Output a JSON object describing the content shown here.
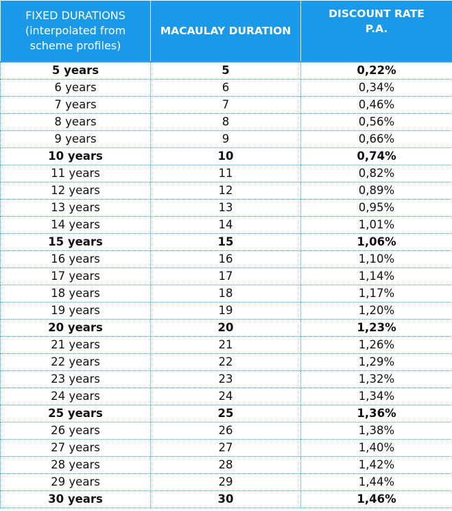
{
  "headers": {
    "col1_line1": "FIXED DURATIONS",
    "col1_line2": "(interpolated from",
    "col1_line3": "scheme profiles)",
    "col2": "MACAULAY DURATION",
    "col3_line1": "DISCOUNT RATE",
    "col3_line2": "P.A."
  },
  "colors": {
    "header_bg": "#1a99e8",
    "header_text": "#ffffff",
    "grid_line": "#2aa3e8"
  },
  "rows": [
    {
      "fixed": "5 years",
      "macaulay": "5",
      "rate": "0,22%",
      "bold": true
    },
    {
      "fixed": "6 years",
      "macaulay": "6",
      "rate": "0,34%",
      "bold": false
    },
    {
      "fixed": "7 years",
      "macaulay": "7",
      "rate": "0,46%",
      "bold": false
    },
    {
      "fixed": "8 years",
      "macaulay": "8",
      "rate": "0,56%",
      "bold": false
    },
    {
      "fixed": "9 years",
      "macaulay": "9",
      "rate": "0,66%",
      "bold": false
    },
    {
      "fixed": "10 years",
      "macaulay": "10",
      "rate": "0,74%",
      "bold": true
    },
    {
      "fixed": "11 years",
      "macaulay": "11",
      "rate": "0,82%",
      "bold": false
    },
    {
      "fixed": "12 years",
      "macaulay": "12",
      "rate": "0,89%",
      "bold": false
    },
    {
      "fixed": "13 years",
      "macaulay": "13",
      "rate": "0,95%",
      "bold": false
    },
    {
      "fixed": "14 years",
      "macaulay": "14",
      "rate": "1,01%",
      "bold": false
    },
    {
      "fixed": "15 years",
      "macaulay": "15",
      "rate": "1,06%",
      "bold": true
    },
    {
      "fixed": "16 years",
      "macaulay": "16",
      "rate": "1,10%",
      "bold": false
    },
    {
      "fixed": "17 years",
      "macaulay": "17",
      "rate": "1,14%",
      "bold": false
    },
    {
      "fixed": "18 years",
      "macaulay": "18",
      "rate": "1,17%",
      "bold": false
    },
    {
      "fixed": "19 years",
      "macaulay": "19",
      "rate": "1,20%",
      "bold": false
    },
    {
      "fixed": "20 years",
      "macaulay": "20",
      "rate": "1,23%",
      "bold": true
    },
    {
      "fixed": "21 years",
      "macaulay": "21",
      "rate": "1,26%",
      "bold": false
    },
    {
      "fixed": "22 years",
      "macaulay": "22",
      "rate": "1,29%",
      "bold": false
    },
    {
      "fixed": "23 years",
      "macaulay": "23",
      "rate": "1,32%",
      "bold": false
    },
    {
      "fixed": "24 years",
      "macaulay": "24",
      "rate": "1,34%",
      "bold": false
    },
    {
      "fixed": "25 years",
      "macaulay": "25",
      "rate": "1,36%",
      "bold": true
    },
    {
      "fixed": "26 years",
      "macaulay": "26",
      "rate": "1,38%",
      "bold": false
    },
    {
      "fixed": "27 years",
      "macaulay": "27",
      "rate": "1,40%",
      "bold": false
    },
    {
      "fixed": "28 years",
      "macaulay": "28",
      "rate": "1,42%",
      "bold": false
    },
    {
      "fixed": "29 years",
      "macaulay": "29",
      "rate": "1,44%",
      "bold": false
    },
    {
      "fixed": "30 years",
      "macaulay": "30",
      "rate": "1,46%",
      "bold": true
    }
  ]
}
